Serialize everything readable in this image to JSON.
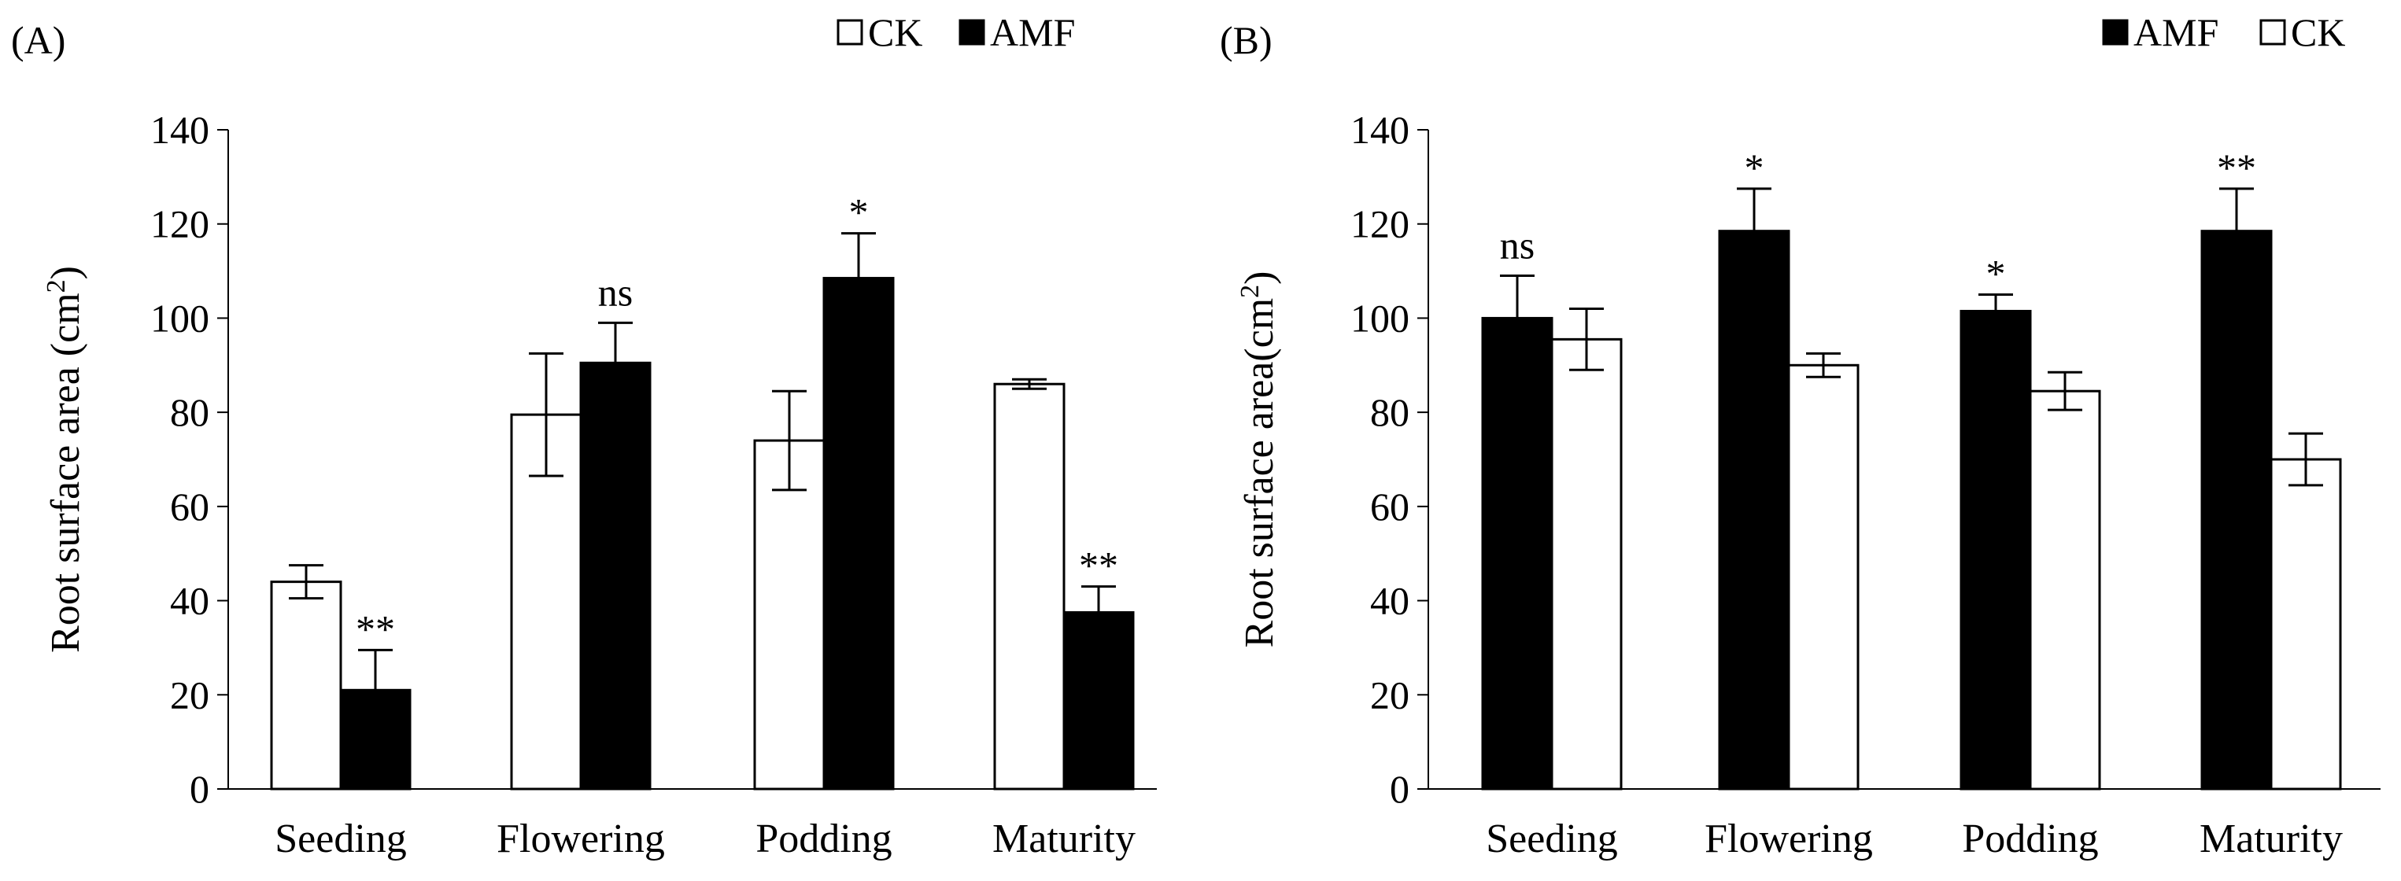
{
  "figure": {
    "panels": [
      "A",
      "B"
    ]
  },
  "chart_data": [
    {
      "type": "bar",
      "panel_label": "(A)",
      "title": "",
      "xlabel": "",
      "ylabel_text": "Root surface area (cm",
      "ylabel_sup": "2",
      "ylabel_close": ")",
      "ylim": [
        0,
        140
      ],
      "yticks": [
        0,
        20,
        40,
        60,
        80,
        100,
        120,
        140
      ],
      "grid": false,
      "legend_position": "top-right",
      "categories": [
        "Seeding",
        "Flowering",
        "Podding",
        "Maturity"
      ],
      "series": [
        {
          "name": "CK",
          "fill": "#ffffff",
          "values": [
            44,
            79.5,
            74,
            86
          ],
          "errors": [
            3.5,
            13,
            10.5,
            1
          ]
        },
        {
          "name": "AMF",
          "fill": "#000000",
          "values": [
            21,
            90.5,
            108.5,
            37.5
          ],
          "errors": [
            8.5,
            8.5,
            9.5,
            5.5
          ]
        }
      ],
      "annotations": [
        {
          "category": "Seeding",
          "text": "**"
        },
        {
          "category": "Flowering",
          "text": "ns"
        },
        {
          "category": "Podding",
          "text": "*"
        },
        {
          "category": "Maturity",
          "text": "**"
        }
      ]
    },
    {
      "type": "bar",
      "panel_label": "(B)",
      "title": "",
      "xlabel": "",
      "ylabel_text": "Root surface area(cm",
      "ylabel_sup": "2",
      "ylabel_close": ")",
      "ylim": [
        0,
        140
      ],
      "yticks": [
        0,
        20,
        40,
        60,
        80,
        100,
        120,
        140
      ],
      "grid": false,
      "legend_position": "top-right",
      "categories": [
        "Seeding",
        "Flowering",
        "Podding",
        "Maturity"
      ],
      "series": [
        {
          "name": "AMF",
          "fill": "#000000",
          "values": [
            100,
            118.5,
            101.5,
            118.5
          ],
          "errors": [
            9,
            9,
            3.5,
            9
          ]
        },
        {
          "name": "CK",
          "fill": "#ffffff",
          "values": [
            95.5,
            90,
            84.5,
            70
          ],
          "errors": [
            6.5,
            2.5,
            4,
            5.5
          ]
        }
      ],
      "annotations": [
        {
          "category": "Seeding",
          "text": "ns"
        },
        {
          "category": "Flowering",
          "text": "*"
        },
        {
          "category": "Podding",
          "text": "*"
        },
        {
          "category": "Maturity",
          "text": "**"
        }
      ]
    }
  ]
}
